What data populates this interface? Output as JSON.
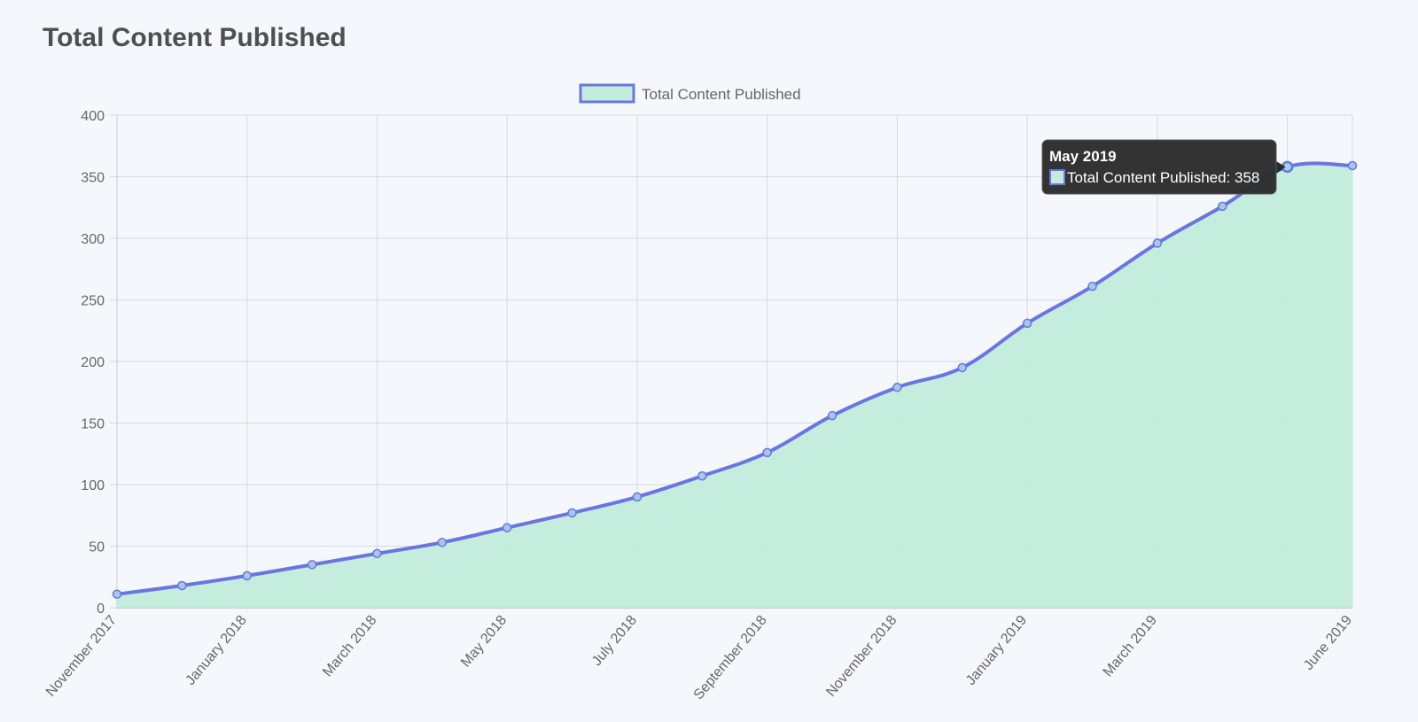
{
  "page": {
    "title": "Total Content Published"
  },
  "chart_data": {
    "type": "area",
    "title": "",
    "xlabel": "",
    "ylabel": "",
    "x": [
      "November 2017",
      "December 2017",
      "January 2018",
      "February 2018",
      "March 2018",
      "April 2018",
      "May 2018",
      "June 2018",
      "July 2018",
      "August 2018",
      "September 2018",
      "October 2018",
      "November 2018",
      "December 2018",
      "January 2019",
      "February 2019",
      "March 2019",
      "April 2019",
      "May 2019",
      "June 2019"
    ],
    "x_tick_labels": [
      "November 2017",
      "",
      "January 2018",
      "",
      "March 2018",
      "",
      "May 2018",
      "",
      "July 2018",
      "",
      "September 2018",
      "",
      "November 2018",
      "",
      "January 2019",
      "",
      "March 2019",
      "",
      "",
      "June 2019"
    ],
    "series": [
      {
        "name": "Total Content Published",
        "values": [
          11,
          18,
          26,
          35,
          44,
          53,
          65,
          77,
          90,
          107,
          126,
          156,
          179,
          195,
          231,
          261,
          296,
          326,
          358,
          359
        ]
      }
    ],
    "ylim": [
      0,
      400
    ],
    "y_ticks": [
      0,
      50,
      100,
      150,
      200,
      250,
      300,
      350,
      400
    ],
    "grid": true,
    "legend": "top-center",
    "colors": {
      "line": "#6b74e0",
      "fill": "#c2ecdb",
      "grid": "#d6dbe2",
      "axis_text": "#666666",
      "tooltip_bg": "#2c2c2c"
    },
    "tooltip": {
      "title": "May 2019",
      "label": "Total Content Published: 358",
      "index": 18
    }
  }
}
